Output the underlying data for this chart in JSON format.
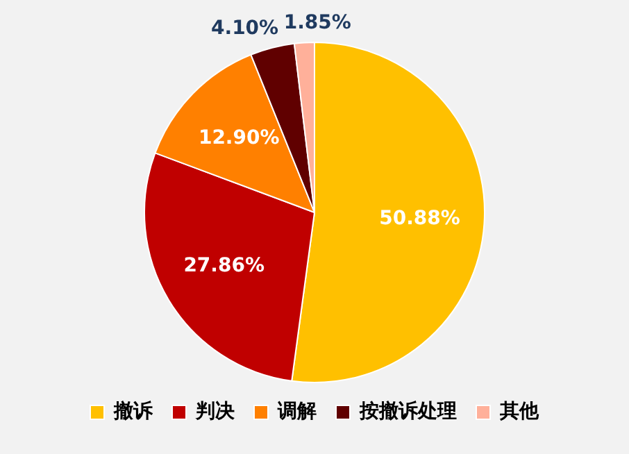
{
  "chart_data": {
    "type": "pie",
    "categories": [
      "撤诉",
      "判决",
      "调解",
      "按撤诉处理",
      "其他"
    ],
    "values": [
      50.88,
      27.86,
      12.9,
      4.1,
      1.85
    ],
    "value_labels": [
      "50.88%",
      "27.86%",
      "12.90%",
      "4.10%",
      "1.85%"
    ],
    "colors": [
      "#ffc000",
      "#c00000",
      "#ff8000",
      "#600000",
      "#ffb09a"
    ],
    "legend": "bottom"
  }
}
